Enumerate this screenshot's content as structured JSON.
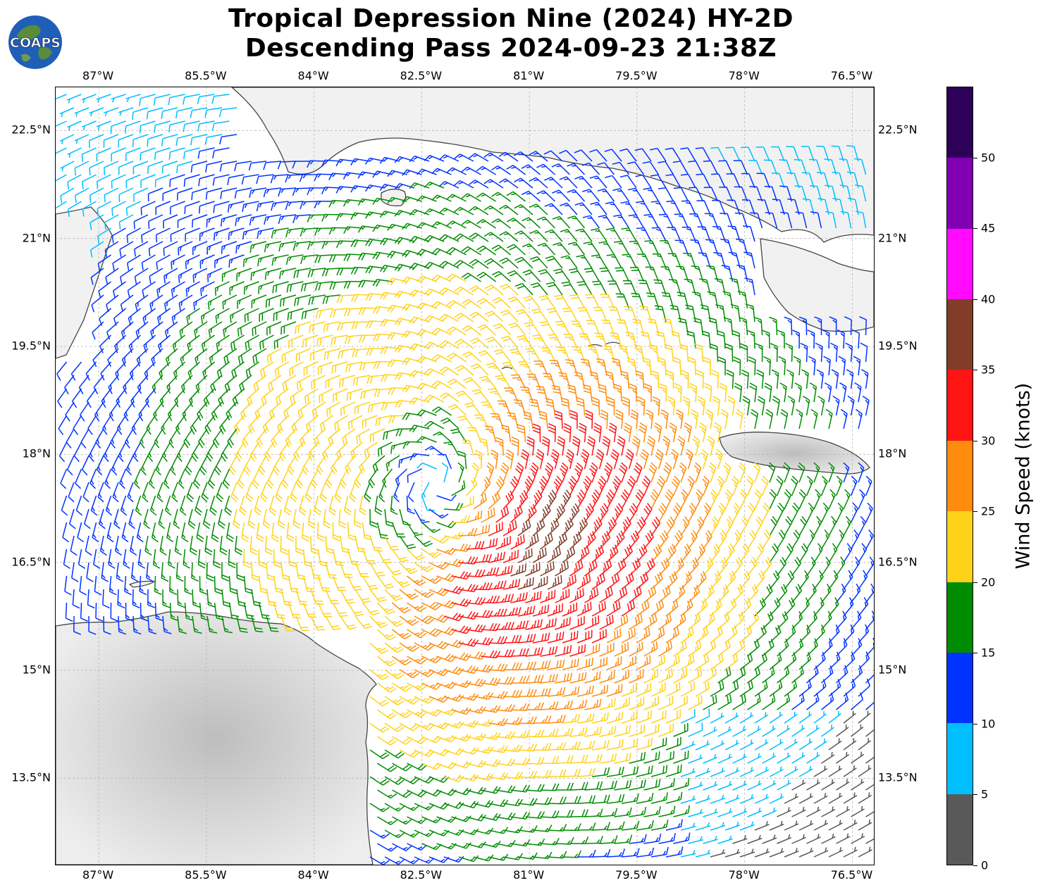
{
  "title": {
    "line1": "Tropical Depression Nine (2024) HY-2D",
    "line2": "Descending Pass 2024-09-23 21:38Z"
  },
  "logo": {
    "text": "COAPS"
  },
  "map": {
    "lon_labels": [
      "87°W",
      "85.5°W",
      "84°W",
      "82.5°W",
      "81°W",
      "79.5°W",
      "78°W",
      "76.5°W"
    ],
    "lat_labels": [
      "22.5°N",
      "21°N",
      "19.5°N",
      "18°N",
      "16.5°N",
      "15°N",
      "13.5°N"
    ],
    "lon_range": [
      -87.6,
      -76.2
    ],
    "lat_range": [
      12.3,
      23.1
    ],
    "circulation_center": {
      "lon": -82.3,
      "lat": 17.6
    },
    "grid": true
  },
  "colorbar": {
    "label": "Wind Speed (knots)",
    "ticks": [
      "0",
      "5",
      "10",
      "15",
      "20",
      "25",
      "30",
      "35",
      "40",
      "45",
      "50"
    ],
    "bins": [
      {
        "range": "0-5",
        "color": "#595959"
      },
      {
        "range": "5-10",
        "color": "#00bfff"
      },
      {
        "range": "10-15",
        "color": "#0033ff"
      },
      {
        "range": "15-20",
        "color": "#008c00"
      },
      {
        "range": "20-25",
        "color": "#ffd21a"
      },
      {
        "range": "25-30",
        "color": "#ff8c0d"
      },
      {
        "range": "30-35",
        "color": "#ff1414"
      },
      {
        "range": "35-40",
        "color": "#823c28"
      },
      {
        "range": "40-45",
        "color": "#ff0aff"
      },
      {
        "range": "45-50",
        "color": "#8200b4"
      },
      {
        "range": "50+",
        "color": "#2d005a"
      }
    ]
  }
}
